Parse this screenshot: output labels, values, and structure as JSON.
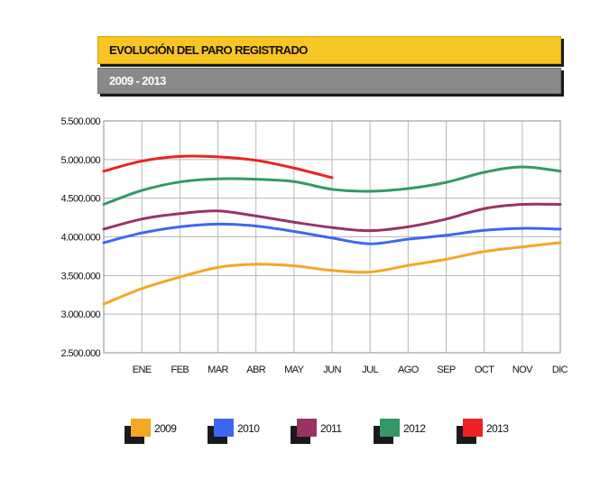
{
  "header": {
    "title": "EVOLUCIÓN DEL PARO REGISTRADO",
    "subtitle": "2009 - 2013"
  },
  "chart_data": {
    "type": "line",
    "categories": [
      "",
      "ENE",
      "FEB",
      "MAR",
      "ABR",
      "MAY",
      "JUN",
      "JUL",
      "AGO",
      "SEP",
      "OCT",
      "NOV",
      "DIC"
    ],
    "ylim": [
      2500000,
      5500000
    ],
    "yticks": [
      2500000,
      3000000,
      3500000,
      4000000,
      4500000,
      5000000,
      5500000
    ],
    "ytick_labels": [
      "2.500.000",
      "3.000.000",
      "3.500.000",
      "4.000.000",
      "4.500.000",
      "5.000.000",
      "5.500.000"
    ],
    "grid": true,
    "legend_position": "bottom",
    "series": [
      {
        "name": "2009",
        "color": "#f5a623",
        "values": [
          3130000,
          3330000,
          3480000,
          3605000,
          3645000,
          3625000,
          3565000,
          3545000,
          3630000,
          3710000,
          3810000,
          3870000,
          3925000
        ]
      },
      {
        "name": "2010",
        "color": "#3d67f2",
        "values": [
          3925000,
          4050000,
          4130000,
          4165000,
          4140000,
          4070000,
          3985000,
          3910000,
          3970000,
          4020000,
          4085000,
          4110000,
          4100000
        ]
      },
      {
        "name": "2011",
        "color": "#993366",
        "values": [
          4100000,
          4230000,
          4300000,
          4335000,
          4270000,
          4190000,
          4120000,
          4080000,
          4130000,
          4230000,
          4365000,
          4420000,
          4420000
        ]
      },
      {
        "name": "2012",
        "color": "#339966",
        "values": [
          4420000,
          4600000,
          4710000,
          4750000,
          4745000,
          4715000,
          4615000,
          4590000,
          4625000,
          4705000,
          4835000,
          4905000,
          4850000
        ]
      },
      {
        "name": "2013",
        "color": "#ee2222",
        "values": [
          4850000,
          4980000,
          5040000,
          5035000,
          4990000,
          4890000,
          4765000,
          null,
          null,
          null,
          null,
          null,
          null
        ]
      }
    ]
  }
}
